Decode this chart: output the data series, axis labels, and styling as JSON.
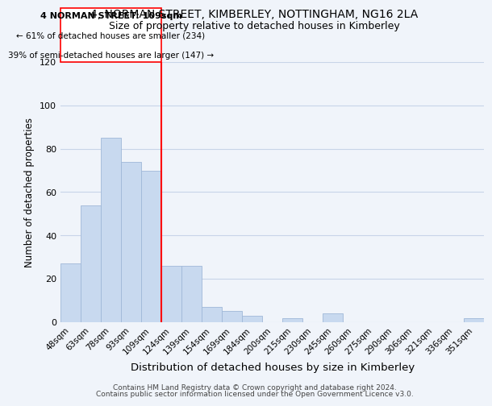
{
  "title": "4, NORMAN STREET, KIMBERLEY, NOTTINGHAM, NG16 2LA",
  "subtitle": "Size of property relative to detached houses in Kimberley",
  "xlabel": "Distribution of detached houses by size in Kimberley",
  "ylabel": "Number of detached properties",
  "bar_labels": [
    "48sqm",
    "63sqm",
    "78sqm",
    "93sqm",
    "109sqm",
    "124sqm",
    "139sqm",
    "154sqm",
    "169sqm",
    "184sqm",
    "200sqm",
    "215sqm",
    "230sqm",
    "245sqm",
    "260sqm",
    "275sqm",
    "290sqm",
    "306sqm",
    "321sqm",
    "336sqm",
    "351sqm"
  ],
  "bar_values": [
    27,
    54,
    85,
    74,
    70,
    26,
    26,
    7,
    5,
    3,
    0,
    2,
    0,
    4,
    0,
    0,
    0,
    0,
    0,
    0,
    2
  ],
  "bar_color": "#c8d9ef",
  "bar_edge_color": "#a0b8d8",
  "red_line_index": 4,
  "ylim": [
    0,
    120
  ],
  "annotation_title": "4 NORMAN STREET: 109sqm",
  "annotation_line1": "← 61% of detached houses are smaller (234)",
  "annotation_line2": "39% of semi-detached houses are larger (147) →",
  "footer1": "Contains HM Land Registry data © Crown copyright and database right 2024.",
  "footer2": "Contains public sector information licensed under the Open Government Licence v3.0.",
  "background_color": "#f0f4fa",
  "grid_color": "#c8d4e8"
}
